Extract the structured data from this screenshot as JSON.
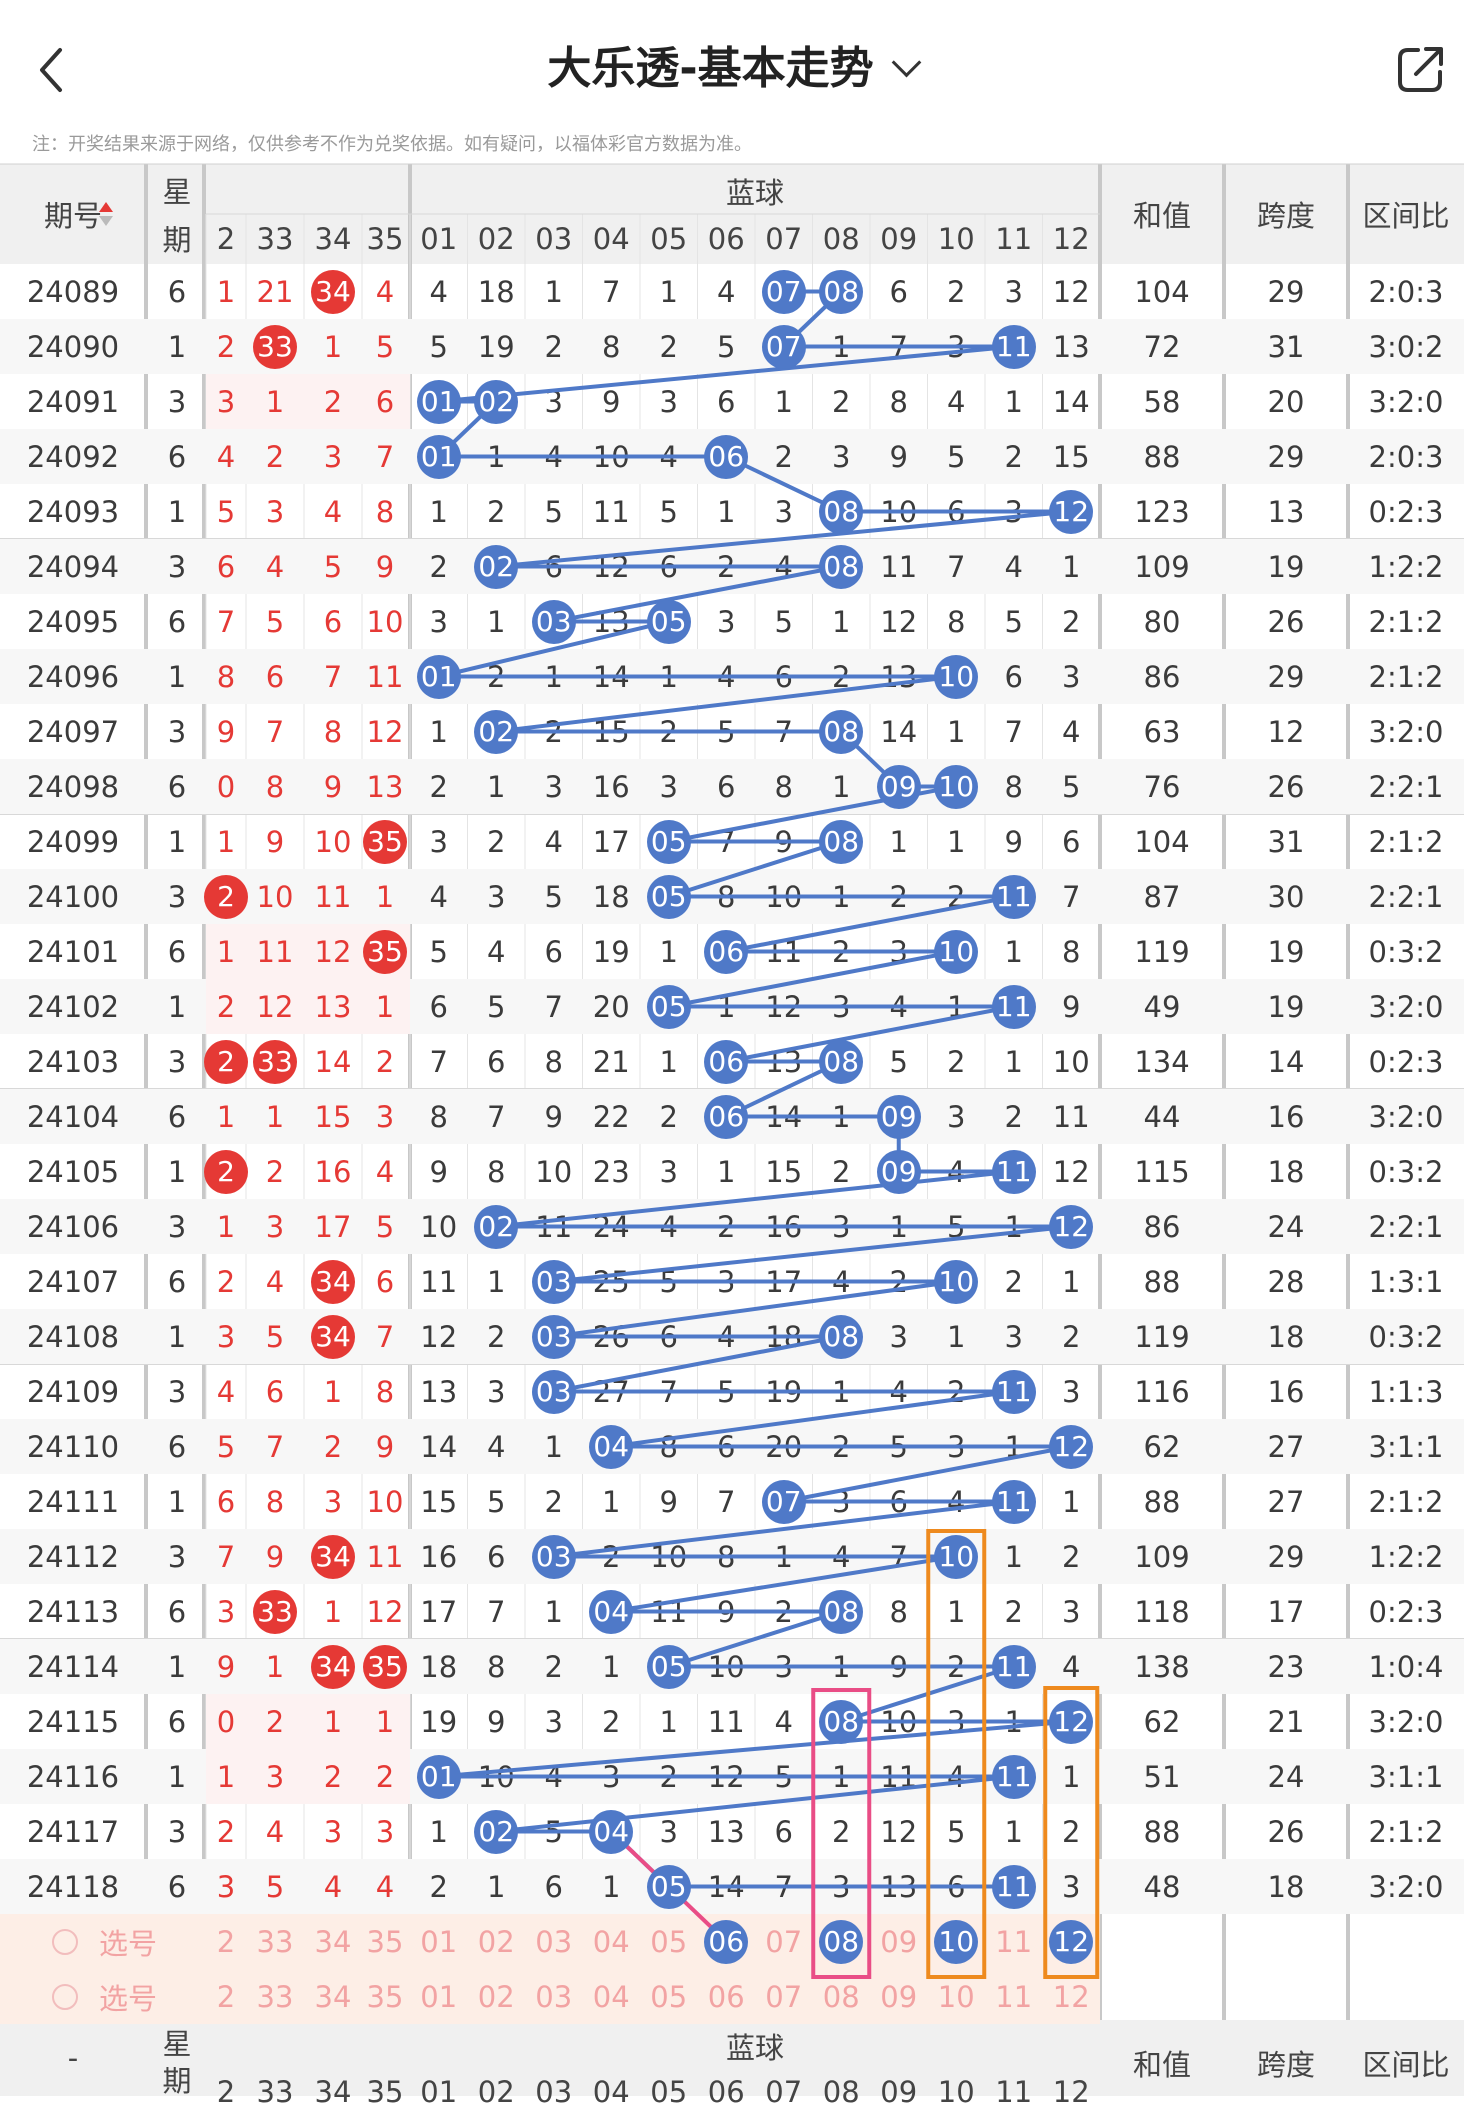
{
  "header": {
    "title": "大乐透-基本走势",
    "back_icon": "chevron-left-icon",
    "share_icon": "share-icon"
  },
  "note": "注：开奖结果来源于网络，仅供参考不作为兑奖依据。如有疑问，以福体彩官方数据为准。",
  "columns": {
    "period": "期号",
    "week_top": "星",
    "week_bottom": "期",
    "front_partial": [
      "2",
      "33",
      "34",
      "35"
    ],
    "blue_group": "蓝球",
    "blue": [
      "01",
      "02",
      "03",
      "04",
      "05",
      "06",
      "07",
      "08",
      "09",
      "10",
      "11",
      "12"
    ],
    "sum": "和值",
    "span": "跨度",
    "ratio": "区间比"
  },
  "rows": [
    {
      "p": "24089",
      "w": "6",
      "f": [
        "1",
        "21",
        "34",
        "4"
      ],
      "fh": [
        2
      ],
      "b": [
        "4",
        "18",
        "1",
        "7",
        "1",
        "4",
        "07",
        "08",
        "6",
        "2",
        "3",
        "12"
      ],
      "bh": [
        6,
        7
      ],
      "s": "104",
      "sp": "29",
      "r": "2:0:3"
    },
    {
      "p": "24090",
      "w": "1",
      "f": [
        "2",
        "33",
        "1",
        "5"
      ],
      "fh": [
        1
      ],
      "b": [
        "5",
        "19",
        "2",
        "8",
        "2",
        "5",
        "07",
        "1",
        "7",
        "3",
        "11",
        "13"
      ],
      "bh": [
        6,
        10
      ],
      "s": "72",
      "sp": "31",
      "r": "3:0:2"
    },
    {
      "p": "24091",
      "w": "3",
      "f": [
        "3",
        "1",
        "2",
        "6"
      ],
      "fh": [],
      "b": [
        "01",
        "02",
        "3",
        "9",
        "3",
        "6",
        "1",
        "2",
        "8",
        "4",
        "1",
        "14"
      ],
      "bh": [
        0,
        1
      ],
      "s": "58",
      "sp": "20",
      "r": "3:2:0"
    },
    {
      "p": "24092",
      "w": "6",
      "f": [
        "4",
        "2",
        "3",
        "7"
      ],
      "fh": [],
      "b": [
        "01",
        "1",
        "4",
        "10",
        "4",
        "06",
        "2",
        "3",
        "9",
        "5",
        "2",
        "15"
      ],
      "bh": [
        0,
        5
      ],
      "s": "88",
      "sp": "29",
      "r": "2:0:3"
    },
    {
      "p": "24093",
      "w": "1",
      "f": [
        "5",
        "3",
        "4",
        "8"
      ],
      "fh": [],
      "b": [
        "1",
        "2",
        "5",
        "11",
        "5",
        "1",
        "3",
        "08",
        "10",
        "6",
        "3",
        "12"
      ],
      "bh": [
        7,
        11
      ],
      "s": "123",
      "sp": "13",
      "r": "0:2:3"
    },
    {
      "p": "24094",
      "w": "3",
      "f": [
        "6",
        "4",
        "5",
        "9"
      ],
      "fh": [],
      "b": [
        "2",
        "02",
        "6",
        "12",
        "6",
        "2",
        "4",
        "08",
        "11",
        "7",
        "4",
        "1"
      ],
      "bh": [
        1,
        7
      ],
      "s": "109",
      "sp": "19",
      "r": "1:2:2"
    },
    {
      "p": "24095",
      "w": "6",
      "f": [
        "7",
        "5",
        "6",
        "10"
      ],
      "fh": [],
      "b": [
        "3",
        "1",
        "03",
        "13",
        "05",
        "3",
        "5",
        "1",
        "12",
        "8",
        "5",
        "2"
      ],
      "bh": [
        2,
        4
      ],
      "s": "80",
      "sp": "26",
      "r": "2:1:2"
    },
    {
      "p": "24096",
      "w": "1",
      "f": [
        "8",
        "6",
        "7",
        "11"
      ],
      "fh": [],
      "b": [
        "01",
        "2",
        "1",
        "14",
        "1",
        "4",
        "6",
        "2",
        "13",
        "10",
        "6",
        "3"
      ],
      "bh": [
        0,
        9
      ],
      "s": "86",
      "sp": "29",
      "r": "2:1:2"
    },
    {
      "p": "24097",
      "w": "3",
      "f": [
        "9",
        "7",
        "8",
        "12"
      ],
      "fh": [],
      "b": [
        "1",
        "02",
        "2",
        "15",
        "2",
        "5",
        "7",
        "08",
        "14",
        "1",
        "7",
        "4"
      ],
      "bh": [
        1,
        7
      ],
      "s": "63",
      "sp": "12",
      "r": "3:2:0"
    },
    {
      "p": "24098",
      "w": "6",
      "f": [
        "0",
        "8",
        "9",
        "13"
      ],
      "fh": [],
      "b": [
        "2",
        "1",
        "3",
        "16",
        "3",
        "6",
        "8",
        "1",
        "09",
        "10",
        "8",
        "5"
      ],
      "bh": [
        8,
        9
      ],
      "s": "76",
      "sp": "26",
      "r": "2:2:1"
    },
    {
      "p": "24099",
      "w": "1",
      "f": [
        "1",
        "9",
        "10",
        "35"
      ],
      "fh": [
        3
      ],
      "b": [
        "3",
        "2",
        "4",
        "17",
        "05",
        "7",
        "9",
        "08",
        "1",
        "1",
        "9",
        "6"
      ],
      "bh": [
        4,
        7
      ],
      "s": "104",
      "sp": "31",
      "r": "2:1:2"
    },
    {
      "p": "24100",
      "w": "3",
      "f": [
        "2",
        "10",
        "11",
        "1"
      ],
      "fh": [
        0
      ],
      "b": [
        "4",
        "3",
        "5",
        "18",
        "05",
        "8",
        "10",
        "1",
        "2",
        "2",
        "11",
        "7"
      ],
      "bh": [
        4,
        10
      ],
      "s": "87",
      "sp": "30",
      "r": "2:2:1"
    },
    {
      "p": "24101",
      "w": "6",
      "f": [
        "1",
        "11",
        "12",
        "35"
      ],
      "fh": [
        3
      ],
      "b": [
        "5",
        "4",
        "6",
        "19",
        "1",
        "06",
        "11",
        "2",
        "3",
        "10",
        "1",
        "8"
      ],
      "bh": [
        5,
        9
      ],
      "s": "119",
      "sp": "19",
      "r": "0:3:2"
    },
    {
      "p": "24102",
      "w": "1",
      "f": [
        "2",
        "12",
        "13",
        "1"
      ],
      "fh": [],
      "b": [
        "6",
        "5",
        "7",
        "20",
        "05",
        "1",
        "12",
        "3",
        "4",
        "1",
        "11",
        "9"
      ],
      "bh": [
        4,
        10
      ],
      "s": "49",
      "sp": "19",
      "r": "3:2:0"
    },
    {
      "p": "24103",
      "w": "3",
      "f": [
        "2",
        "33",
        "14",
        "2"
      ],
      "fh": [
        0,
        1
      ],
      "b": [
        "7",
        "6",
        "8",
        "21",
        "1",
        "06",
        "13",
        "08",
        "5",
        "2",
        "1",
        "10"
      ],
      "bh": [
        5,
        7
      ],
      "s": "134",
      "sp": "14",
      "r": "0:2:3"
    },
    {
      "p": "24104",
      "w": "6",
      "f": [
        "1",
        "1",
        "15",
        "3"
      ],
      "fh": [],
      "b": [
        "8",
        "7",
        "9",
        "22",
        "2",
        "06",
        "14",
        "1",
        "09",
        "3",
        "2",
        "11"
      ],
      "bh": [
        5,
        8
      ],
      "s": "44",
      "sp": "16",
      "r": "3:2:0"
    },
    {
      "p": "24105",
      "w": "1",
      "f": [
        "2",
        "2",
        "16",
        "4"
      ],
      "fh": [
        0
      ],
      "b": [
        "9",
        "8",
        "10",
        "23",
        "3",
        "1",
        "15",
        "2",
        "09",
        "4",
        "11",
        "12"
      ],
      "bh": [
        8,
        10
      ],
      "s": "115",
      "sp": "18",
      "r": "0:3:2"
    },
    {
      "p": "24106",
      "w": "3",
      "f": [
        "1",
        "3",
        "17",
        "5"
      ],
      "fh": [],
      "b": [
        "10",
        "02",
        "11",
        "24",
        "4",
        "2",
        "16",
        "3",
        "1",
        "5",
        "1",
        "12"
      ],
      "bh": [
        1,
        11
      ],
      "s": "86",
      "sp": "24",
      "r": "2:2:1"
    },
    {
      "p": "24107",
      "w": "6",
      "f": [
        "2",
        "4",
        "34",
        "6"
      ],
      "fh": [
        2
      ],
      "b": [
        "11",
        "1",
        "03",
        "25",
        "5",
        "3",
        "17",
        "4",
        "2",
        "10",
        "2",
        "1"
      ],
      "bh": [
        2,
        9
      ],
      "s": "88",
      "sp": "28",
      "r": "1:3:1"
    },
    {
      "p": "24108",
      "w": "1",
      "f": [
        "3",
        "5",
        "34",
        "7"
      ],
      "fh": [
        2
      ],
      "b": [
        "12",
        "2",
        "03",
        "26",
        "6",
        "4",
        "18",
        "08",
        "3",
        "1",
        "3",
        "2"
      ],
      "bh": [
        2,
        7
      ],
      "s": "119",
      "sp": "18",
      "r": "0:3:2"
    },
    {
      "p": "24109",
      "w": "3",
      "f": [
        "4",
        "6",
        "1",
        "8"
      ],
      "fh": [],
      "b": [
        "13",
        "3",
        "03",
        "27",
        "7",
        "5",
        "19",
        "1",
        "4",
        "2",
        "11",
        "3"
      ],
      "bh": [
        2,
        10
      ],
      "s": "116",
      "sp": "16",
      "r": "1:1:3"
    },
    {
      "p": "24110",
      "w": "6",
      "f": [
        "5",
        "7",
        "2",
        "9"
      ],
      "fh": [],
      "b": [
        "14",
        "4",
        "1",
        "04",
        "8",
        "6",
        "20",
        "2",
        "5",
        "3",
        "1",
        "12"
      ],
      "bh": [
        3,
        11
      ],
      "s": "62",
      "sp": "27",
      "r": "3:1:1"
    },
    {
      "p": "24111",
      "w": "1",
      "f": [
        "6",
        "8",
        "3",
        "10"
      ],
      "fh": [],
      "b": [
        "15",
        "5",
        "2",
        "1",
        "9",
        "7",
        "07",
        "3",
        "6",
        "4",
        "11",
        "1"
      ],
      "bh": [
        6,
        10
      ],
      "s": "88",
      "sp": "27",
      "r": "2:1:2"
    },
    {
      "p": "24112",
      "w": "3",
      "f": [
        "7",
        "9",
        "34",
        "11"
      ],
      "fh": [
        2
      ],
      "b": [
        "16",
        "6",
        "03",
        "2",
        "10",
        "8",
        "1",
        "4",
        "7",
        "10",
        "1",
        "2"
      ],
      "bh": [
        2,
        9
      ],
      "s": "109",
      "sp": "29",
      "r": "1:2:2"
    },
    {
      "p": "24113",
      "w": "6",
      "f": [
        "3",
        "33",
        "1",
        "12"
      ],
      "fh": [
        1
      ],
      "b": [
        "17",
        "7",
        "1",
        "04",
        "11",
        "9",
        "2",
        "08",
        "8",
        "1",
        "2",
        "3"
      ],
      "bh": [
        3,
        7
      ],
      "s": "118",
      "sp": "17",
      "r": "0:2:3"
    },
    {
      "p": "24114",
      "w": "1",
      "f": [
        "9",
        "1",
        "34",
        "35"
      ],
      "fh": [
        2,
        3
      ],
      "b": [
        "18",
        "8",
        "2",
        "1",
        "05",
        "10",
        "3",
        "1",
        "9",
        "2",
        "11",
        "4"
      ],
      "bh": [
        4,
        10
      ],
      "s": "138",
      "sp": "23",
      "r": "1:0:4"
    },
    {
      "p": "24115",
      "w": "6",
      "f": [
        "0",
        "2",
        "1",
        "1"
      ],
      "fh": [],
      "b": [
        "19",
        "9",
        "3",
        "2",
        "1",
        "11",
        "4",
        "08",
        "10",
        "3",
        "1",
        "12"
      ],
      "bh": [
        7,
        11
      ],
      "s": "62",
      "sp": "21",
      "r": "3:2:0"
    },
    {
      "p": "24116",
      "w": "1",
      "f": [
        "1",
        "3",
        "2",
        "2"
      ],
      "fh": [],
      "b": [
        "01",
        "10",
        "4",
        "3",
        "2",
        "12",
        "5",
        "1",
        "11",
        "4",
        "11",
        "1"
      ],
      "bh": [
        0,
        10
      ],
      "s": "51",
      "sp": "24",
      "r": "3:1:1"
    },
    {
      "p": "24117",
      "w": "3",
      "f": [
        "2",
        "4",
        "3",
        "3"
      ],
      "fh": [],
      "b": [
        "1",
        "02",
        "5",
        "04",
        "3",
        "13",
        "6",
        "2",
        "12",
        "5",
        "1",
        "2"
      ],
      "bh": [
        1,
        3
      ],
      "s": "88",
      "sp": "26",
      "r": "2:1:2"
    },
    {
      "p": "24118",
      "w": "6",
      "f": [
        "3",
        "5",
        "4",
        "4"
      ],
      "fh": [],
      "b": [
        "2",
        "1",
        "6",
        "1",
        "05",
        "14",
        "7",
        "3",
        "13",
        "6",
        "11",
        "3"
      ],
      "bh": [
        4,
        10
      ],
      "s": "48",
      "sp": "18",
      "r": "3:2:0"
    }
  ],
  "select_rows": [
    {
      "label": "选号",
      "f": [
        "2",
        "33",
        "34",
        "35"
      ],
      "b": [
        "01",
        "02",
        "03",
        "04",
        "05",
        "06",
        "07",
        "08",
        "09",
        "10",
        "11",
        "12"
      ],
      "bh": [
        5,
        7,
        9,
        11
      ]
    },
    {
      "label": "选号",
      "f": [
        "2",
        "33",
        "34",
        "35"
      ],
      "b": [
        "01",
        "02",
        "03",
        "04",
        "05",
        "06",
        "07",
        "08",
        "09",
        "10",
        "11",
        "12"
      ],
      "bh": []
    }
  ],
  "footer": {
    "period": "-",
    "week_top": "星",
    "week_bottom": "期",
    "front_partial": [
      "2",
      "33",
      "34",
      "35"
    ],
    "blue_group": "蓝球",
    "blue": [
      "01",
      "02",
      "03",
      "04",
      "05",
      "06",
      "07",
      "08",
      "09",
      "10",
      "11",
      "12"
    ],
    "sum": "和值",
    "span": "跨度",
    "ratio": "区间比"
  },
  "colors": {
    "ball_blue": "#4f79c8",
    "ball_red": "#e53935",
    "header_bg": "#f0f0f0",
    "select_bg": "#fdeee6",
    "pink_box": "#e94d86",
    "orange_box": "#ee8a1e",
    "pink_line": "#e94d86"
  }
}
